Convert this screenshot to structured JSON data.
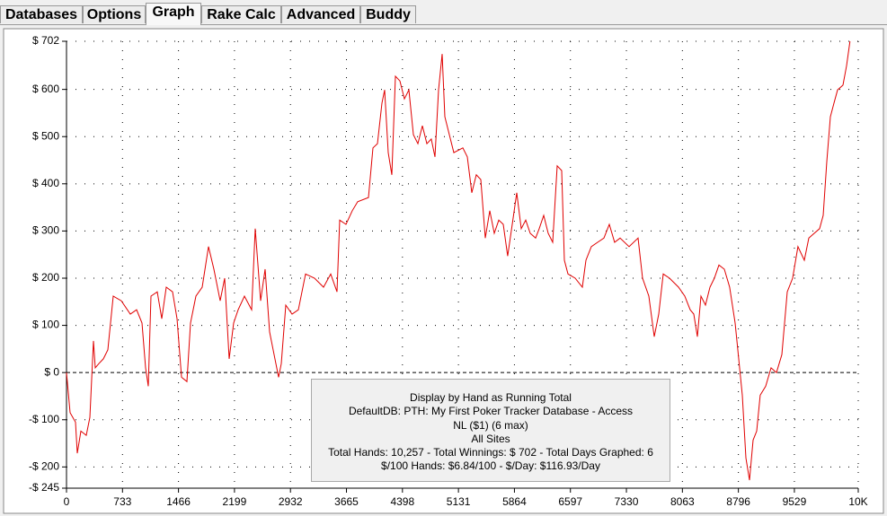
{
  "tabs": [
    "Databases",
    "Options",
    "Graph",
    "Rake Calc",
    "Advanced",
    "Buddy"
  ],
  "chart_data": {
    "type": "line",
    "x": [
      0,
      47,
      118,
      141,
      188,
      259,
      306,
      353,
      376,
      424,
      482,
      541,
      612,
      718,
      835,
      918,
      988,
      1035,
      1071,
      1106,
      1188,
      1247,
      1306,
      1388,
      1447,
      1506,
      1576,
      1624,
      1694,
      1776,
      1859,
      1929,
      2012,
      2071,
      2129,
      2188,
      2247,
      2329,
      2424,
      2471,
      2541,
      2600,
      2659,
      2718,
      2776,
      2812,
      2871,
      2953,
      3035,
      3129,
      3247,
      3365,
      3459,
      3541,
      3576,
      3659,
      3741,
      3812,
      3953,
      4012,
      4071,
      4129,
      4165,
      4212,
      4259,
      4306,
      4365,
      4424,
      4482,
      4541,
      4600,
      4659,
      4718,
      4776,
      4824,
      4871,
      4918,
      4953,
      5012,
      5071,
      5188,
      5247,
      5306,
      5365,
      5424,
      5482,
      5541,
      5600,
      5659,
      5718,
      5776,
      5835,
      5894,
      5953,
      6012,
      6071,
      6141,
      6188,
      6247,
      6306,
      6365,
      6424,
      6482,
      6518,
      6565,
      6659,
      6753,
      6800,
      6871,
      6953,
      7035,
      7106,
      7176,
      7247,
      7365,
      7482,
      7541,
      7624,
      7694,
      7753,
      7812,
      7894,
      8012,
      8094,
      8165,
      8212,
      8259,
      8306,
      8365,
      8424,
      8482,
      8541,
      8612,
      8682,
      8753,
      8800,
      8847,
      8894,
      8941,
      8988,
      9035,
      9082,
      9153,
      9224,
      9294,
      9365,
      9435,
      9506,
      9576,
      9659,
      9718,
      9788,
      9859,
      9906,
      9953,
      10000,
      10047,
      10094,
      10165,
      10212,
      10257
    ],
    "series": [
      {
        "color": "#e00000",
        "values": [
          0,
          -85,
          -105,
          -171,
          -124,
          -133,
          -95,
          67,
          10,
          19,
          29,
          48,
          162,
          152,
          124,
          133,
          105,
          10,
          -29,
          162,
          171,
          114,
          181,
          171,
          114,
          -10,
          -19,
          105,
          162,
          181,
          267,
          219,
          152,
          200,
          29,
          105,
          133,
          162,
          133,
          305,
          152,
          219,
          86,
          38,
          -10,
          19,
          143,
          124,
          133,
          209,
          200,
          181,
          209,
          171,
          323,
          314,
          343,
          362,
          371,
          476,
          485,
          571,
          599,
          466,
          419,
          628,
          618,
          580,
          599,
          504,
          485,
          523,
          485,
          495,
          457,
          599,
          675,
          542,
          504,
          466,
          476,
          457,
          381,
          419,
          409,
          285,
          343,
          295,
          323,
          314,
          247,
          314,
          381,
          305,
          323,
          295,
          285,
          305,
          333,
          295,
          276,
          438,
          428,
          238,
          209,
          200,
          181,
          238,
          267,
          276,
          285,
          314,
          276,
          285,
          267,
          285,
          200,
          162,
          76,
          124,
          209,
          200,
          181,
          162,
          133,
          124,
          76,
          162,
          143,
          181,
          200,
          228,
          219,
          181,
          105,
          29,
          -48,
          -181,
          -228,
          -143,
          -124,
          -48,
          -29,
          10,
          0,
          38,
          171,
          200,
          267,
          238,
          285,
          295,
          305,
          333,
          447,
          542,
          571,
          599,
          609,
          650,
          702
        ]
      }
    ],
    "xlim": [
      0,
      10365
    ],
    "ylim": [
      -245,
      702
    ],
    "xticks": [
      0,
      733,
      1466,
      2199,
      2932,
      3665,
      4398,
      5131,
      5864,
      6597,
      7330,
      8063,
      8796,
      9529,
      {
        "value": 10365,
        "label": "10K"
      }
    ],
    "yticks": [
      {
        "value": 702,
        "label": "$ 702"
      },
      {
        "value": 600,
        "label": "$ 600"
      },
      {
        "value": 500,
        "label": "$ 500"
      },
      {
        "value": 400,
        "label": "$ 400"
      },
      {
        "value": 300,
        "label": "$ 300"
      },
      {
        "value": 200,
        "label": "$ 200"
      },
      {
        "value": 100,
        "label": "$ 100"
      },
      {
        "value": 0,
        "label": "$ 0"
      },
      {
        "value": -100,
        "label": "-$ 100"
      },
      {
        "value": -200,
        "label": "-$ 200"
      },
      {
        "value": -245,
        "label": "-$ 245"
      }
    ],
    "grid": true
  },
  "info_box": {
    "lines": [
      "Display by Hand as Running Total",
      "DefaultDB: PTH: My First Poker Tracker Database - Access",
      "NL ($1) (6 max)",
      "All Sites",
      "Total Hands: 10,257 - Total Winnings: $ 702 - Total Days Graphed: 6",
      "$/100 Hands: $6.84/100 - $/Day: $116.93/Day"
    ]
  }
}
